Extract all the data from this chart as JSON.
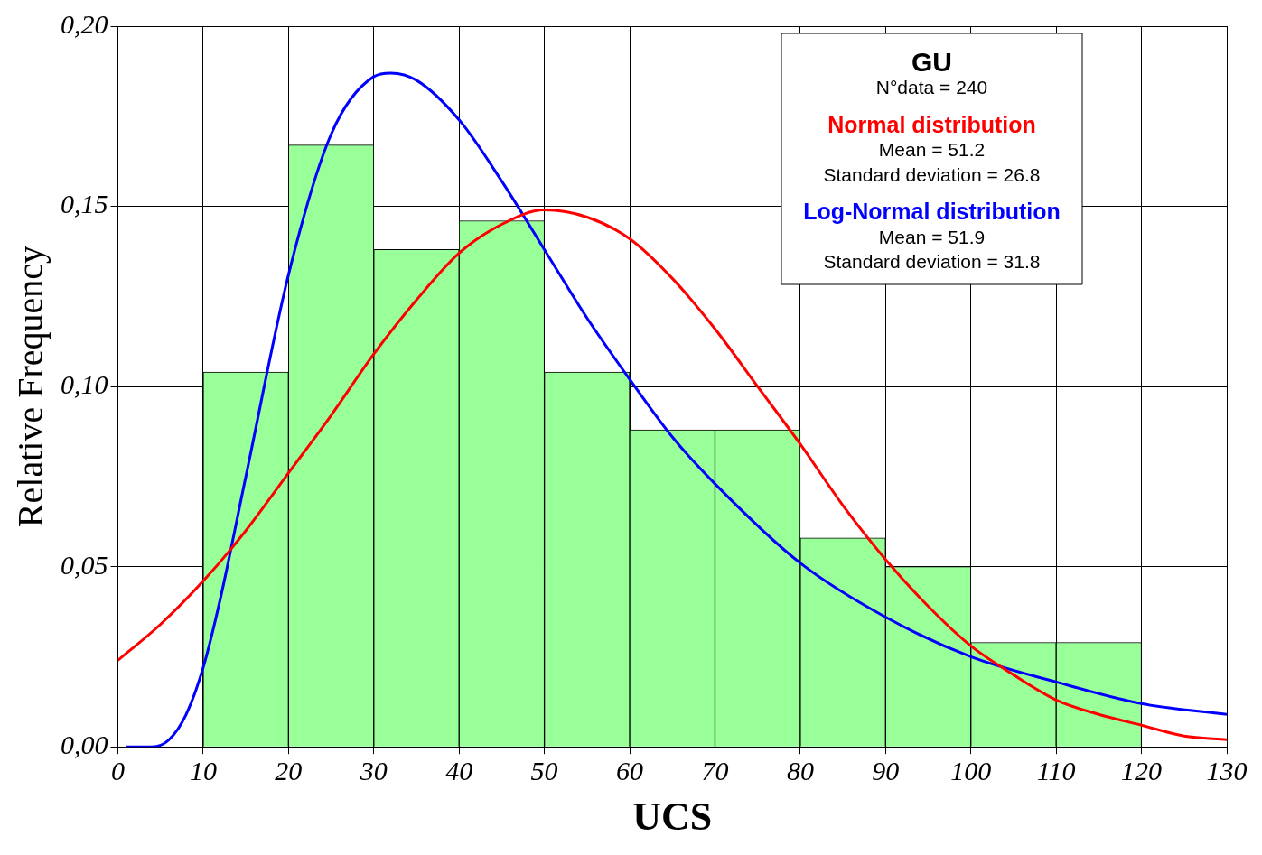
{
  "chart_data": {
    "type": "histogram",
    "xlabel": "UCS",
    "ylabel": "Relative Frequency",
    "bins": [
      10,
      20,
      30,
      40,
      50,
      60,
      70,
      80,
      90,
      100,
      110,
      120
    ],
    "values": [
      0.104,
      0.167,
      0.138,
      0.146,
      0.104,
      0.088,
      0.088,
      0.058,
      0.05,
      0.029,
      0.029
    ],
    "color": "#99ff99",
    "series": [
      {
        "name": "Normal distribution",
        "type": "line",
        "color": "#ff0000",
        "x": [
          0,
          5,
          10,
          15,
          20,
          25,
          30,
          35,
          40,
          45,
          50,
          55,
          60,
          65,
          70,
          75,
          80,
          85,
          90,
          95,
          100,
          105,
          110,
          115,
          120,
          125,
          130
        ],
        "values": [
          0.024,
          0.034,
          0.046,
          0.06,
          0.076,
          0.092,
          0.109,
          0.124,
          0.137,
          0.145,
          0.149,
          0.147,
          0.141,
          0.13,
          0.116,
          0.1,
          0.084,
          0.067,
          0.052,
          0.039,
          0.028,
          0.02,
          0.013,
          0.009,
          0.006,
          0.003,
          0.002
        ]
      },
      {
        "name": "Log-Normal distribution",
        "type": "line",
        "color": "#0000ff",
        "x": [
          1,
          4,
          6,
          8,
          10,
          12,
          15,
          20,
          25,
          30,
          32,
          35,
          40,
          45,
          50,
          55,
          60,
          65,
          70,
          80,
          90,
          100,
          110,
          120,
          130
        ],
        "values": [
          0,
          0,
          0.002,
          0.009,
          0.022,
          0.041,
          0.075,
          0.131,
          0.17,
          0.186,
          0.187,
          0.185,
          0.174,
          0.157,
          0.138,
          0.119,
          0.102,
          0.086,
          0.073,
          0.051,
          0.036,
          0.025,
          0.018,
          0.012,
          0.009
        ]
      }
    ],
    "annotations": [
      "GU",
      "N°data = 240",
      "Mean = 51.2",
      "Standard deviation = 26.8",
      "Mean = 51.9",
      "Standard deviation = 31.8"
    ],
    "legend": "top right",
    "xlim": [
      0,
      130
    ],
    "xticks": [
      0,
      10,
      20,
      30,
      40,
      50,
      60,
      70,
      80,
      90,
      100,
      110,
      120,
      130
    ],
    "ylim": [
      0,
      0.2
    ],
    "yticks": [
      {
        "value": 0,
        "label": "0,00"
      },
      {
        "value": 0.05,
        "label": "0,05"
      },
      {
        "value": 0.1,
        "label": "0,10"
      },
      {
        "value": 0.15,
        "label": "0,15"
      },
      {
        "value": 0.2,
        "label": "0,20"
      }
    ],
    "grid": true
  }
}
